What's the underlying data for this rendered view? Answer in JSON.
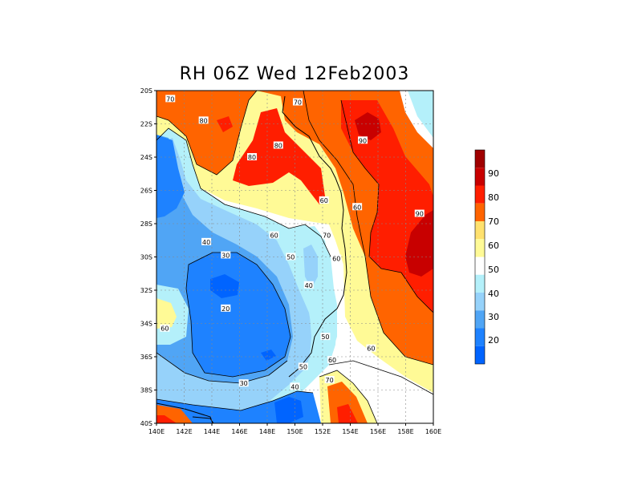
{
  "title": "RH 06Z Wed 12Feb2003",
  "map": {
    "lon_ticks": [
      "140E",
      "142E",
      "144E",
      "146E",
      "148E",
      "150E",
      "152E",
      "154E",
      "156E",
      "158E",
      "160E"
    ],
    "lat_ticks": [
      "20S",
      "22S",
      "24S",
      "26S",
      "28S",
      "30S",
      "32S",
      "34S",
      "36S",
      "38S",
      "40S"
    ],
    "lon_range": [
      140,
      160
    ],
    "lat_range": [
      -20,
      -40
    ],
    "grid": "dotted"
  },
  "contour_labels": [
    {
      "text": "70",
      "lon": 141.0,
      "lat": -20.5
    },
    {
      "text": "70",
      "lon": 150.2,
      "lat": -20.7
    },
    {
      "text": "80",
      "lon": 143.4,
      "lat": -21.8
    },
    {
      "text": "90",
      "lon": 154.9,
      "lat": -23.0
    },
    {
      "text": "80",
      "lon": 148.8,
      "lat": -23.3
    },
    {
      "text": "80",
      "lon": 146.9,
      "lat": -24.0
    },
    {
      "text": "60",
      "lon": 152.1,
      "lat": -26.6
    },
    {
      "text": "60",
      "lon": 154.5,
      "lat": -27.0
    },
    {
      "text": "90",
      "lon": 159.0,
      "lat": -27.4
    },
    {
      "text": "60",
      "lon": 148.5,
      "lat": -28.7
    },
    {
      "text": "70",
      "lon": 152.3,
      "lat": -28.7
    },
    {
      "text": "40",
      "lon": 143.6,
      "lat": -29.1
    },
    {
      "text": "30",
      "lon": 145.0,
      "lat": -29.9
    },
    {
      "text": "50",
      "lon": 149.7,
      "lat": -30.0
    },
    {
      "text": "60",
      "lon": 153.0,
      "lat": -30.1
    },
    {
      "text": "40",
      "lon": 151.0,
      "lat": -31.7
    },
    {
      "text": "20",
      "lon": 145.0,
      "lat": -33.1
    },
    {
      "text": "60",
      "lon": 140.6,
      "lat": -34.3
    },
    {
      "text": "50",
      "lon": 152.2,
      "lat": -34.8
    },
    {
      "text": "60",
      "lon": 155.5,
      "lat": -35.5
    },
    {
      "text": "60",
      "lon": 152.7,
      "lat": -36.2
    },
    {
      "text": "50",
      "lon": 150.6,
      "lat": -36.6
    },
    {
      "text": "70",
      "lon": 152.5,
      "lat": -37.4
    },
    {
      "text": "30",
      "lon": 146.3,
      "lat": -37.6
    },
    {
      "text": "40",
      "lon": 150.0,
      "lat": -37.8
    }
  ],
  "colorbar": {
    "levels": [
      "20",
      "30",
      "40",
      "50",
      "60",
      "70",
      "80",
      "90"
    ],
    "colors": [
      "#0064ff",
      "#1e82ff",
      "#50a5f5",
      "#96d2fa",
      "#b4f0fa",
      "#ffffff",
      "#fffa96",
      "#ffe16e",
      "#ff6400",
      "#ff1e00",
      "#c80000",
      "#a00000"
    ]
  }
}
